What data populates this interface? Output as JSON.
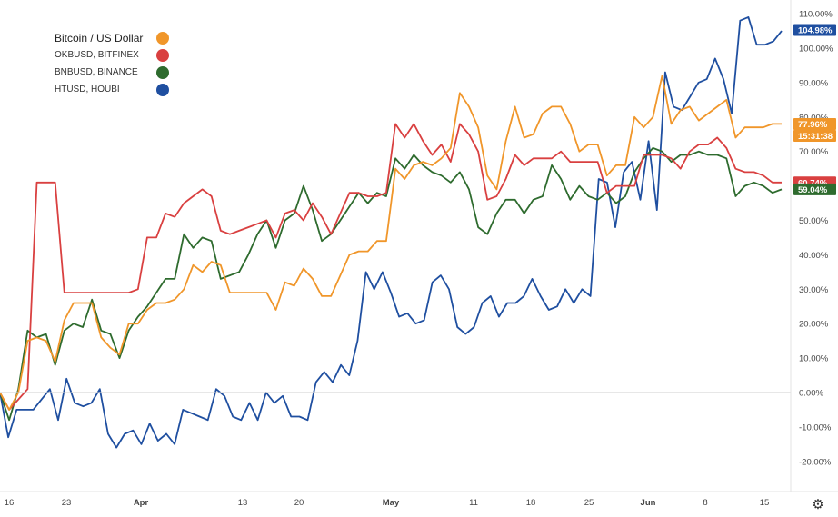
{
  "chart_data": {
    "type": "line",
    "y_unit": "%",
    "ylim": [
      -25,
      110
    ],
    "y_ticks": [
      -20,
      -10,
      0,
      10,
      20,
      30,
      40,
      50,
      60,
      70,
      80,
      90,
      100,
      110
    ],
    "y_tick_labels": [
      "-20.00%",
      "-10.00%",
      "0.00%",
      "10.00%",
      "20.00%",
      "30.00%",
      "40.00%",
      "50.00%",
      "60.00%",
      "70.00%",
      "80.00%",
      "90.00%",
      "100.00%",
      "110.00%"
    ],
    "x_ticks": [
      {
        "label": "16",
        "bold": false
      },
      {
        "label": "23",
        "bold": false
      },
      {
        "label": "Apr",
        "bold": true
      },
      {
        "label": "13",
        "bold": false
      },
      {
        "label": "20",
        "bold": false
      },
      {
        "label": "May",
        "bold": true
      },
      {
        "label": "11",
        "bold": false
      },
      {
        "label": "18",
        "bold": false
      },
      {
        "label": "25",
        "bold": false
      },
      {
        "label": "Jun",
        "bold": true
      },
      {
        "label": "8",
        "bold": false
      },
      {
        "label": "15",
        "bold": false
      }
    ],
    "grid": false,
    "zero_line": true,
    "reference_line": {
      "value": 77.96,
      "color": "#f0962a"
    },
    "legend_position": "top-left",
    "series": [
      {
        "name": "Bitcoin / US Dollar",
        "color": "#f0962a",
        "last_label": "77.96%",
        "extra_label": "15:31:38",
        "values": [
          0,
          -5,
          0,
          15,
          16,
          15,
          9,
          21,
          26,
          26,
          26,
          16,
          13,
          11,
          20,
          20,
          24,
          26,
          26,
          27,
          30,
          37,
          35,
          38,
          37,
          29,
          29,
          29,
          29,
          29,
          24,
          32,
          31,
          36,
          33,
          28,
          28,
          34,
          40,
          41,
          41,
          44,
          44,
          65,
          62,
          66,
          67,
          66,
          68,
          71,
          87,
          83,
          77,
          63,
          59,
          73,
          83,
          74,
          75,
          81,
          83,
          83,
          78,
          70,
          72,
          72,
          63,
          66,
          66,
          80,
          77,
          80,
          92,
          78,
          82,
          83,
          79,
          81,
          83,
          85,
          74,
          77,
          77,
          77,
          78,
          78
        ]
      },
      {
        "name": "OKBUSD, BITFINEX",
        "color": "#d94040",
        "last_label": "60.74%",
        "values": [
          0,
          -5,
          -2,
          1,
          61,
          61,
          61,
          29,
          29,
          29,
          29,
          29,
          29,
          29,
          29,
          30,
          45,
          45,
          52,
          51,
          55,
          57,
          59,
          57,
          47,
          46,
          47,
          48,
          49,
          50,
          45,
          52,
          53,
          50,
          55,
          51,
          46,
          52,
          58,
          58,
          57,
          57,
          58,
          78,
          74,
          78,
          73,
          69,
          72,
          67,
          78,
          75,
          70,
          56,
          57,
          62,
          69,
          66,
          68,
          68,
          68,
          70,
          67,
          67,
          67,
          67,
          58,
          60,
          60,
          60,
          69,
          69,
          69,
          68,
          65,
          70,
          72,
          72,
          74,
          71,
          65,
          64,
          64,
          63,
          61,
          61
        ]
      },
      {
        "name": "BNBUSD, BINANCE",
        "color": "#2e6b2e",
        "last_label": "59.04%",
        "values": [
          0,
          -8,
          1,
          18,
          16,
          17,
          8,
          18,
          20,
          19,
          27,
          18,
          17,
          10,
          18,
          22,
          25,
          29,
          33,
          33,
          46,
          42,
          45,
          44,
          33,
          34,
          35,
          40,
          46,
          50,
          42,
          50,
          52,
          60,
          53,
          44,
          46,
          50,
          54,
          58,
          55,
          58,
          57,
          68,
          65,
          69,
          66,
          64,
          63,
          61,
          64,
          59,
          48,
          46,
          52,
          56,
          56,
          52,
          56,
          57,
          66,
          62,
          56,
          60,
          57,
          56,
          58,
          55,
          57,
          64,
          68,
          71,
          70,
          67,
          69,
          69,
          70,
          69,
          69,
          68,
          57,
          60,
          61,
          60,
          58,
          59
        ]
      },
      {
        "name": "HTUSD, HOUBI",
        "color": "#1f4fa0",
        "last_label": "104.98%",
        "values": [
          0,
          -13,
          -5,
          -5,
          -5,
          -2,
          1,
          -8,
          4,
          -3,
          -4,
          -3,
          1,
          -12,
          -16,
          -12,
          -11,
          -15,
          -9,
          -14,
          -12,
          -15,
          -5,
          -6,
          -7,
          -8,
          1,
          -1,
          -7,
          -8,
          -3,
          -8,
          0,
          -3,
          -1,
          -7,
          -7,
          -8,
          3,
          6,
          3,
          8,
          5,
          15,
          35,
          30,
          35,
          29,
          22,
          23,
          20,
          21,
          32,
          34,
          30,
          19,
          17,
          19,
          26,
          28,
          22,
          26,
          26,
          28,
          33,
          28,
          24,
          25,
          30,
          26,
          30,
          28,
          62,
          61,
          48,
          64,
          67,
          56,
          73,
          53,
          93,
          83,
          82,
          86,
          90,
          91,
          97,
          91,
          81,
          108,
          109,
          101,
          101,
          102,
          105
        ]
      }
    ]
  },
  "settings_icon": "gear-icon"
}
